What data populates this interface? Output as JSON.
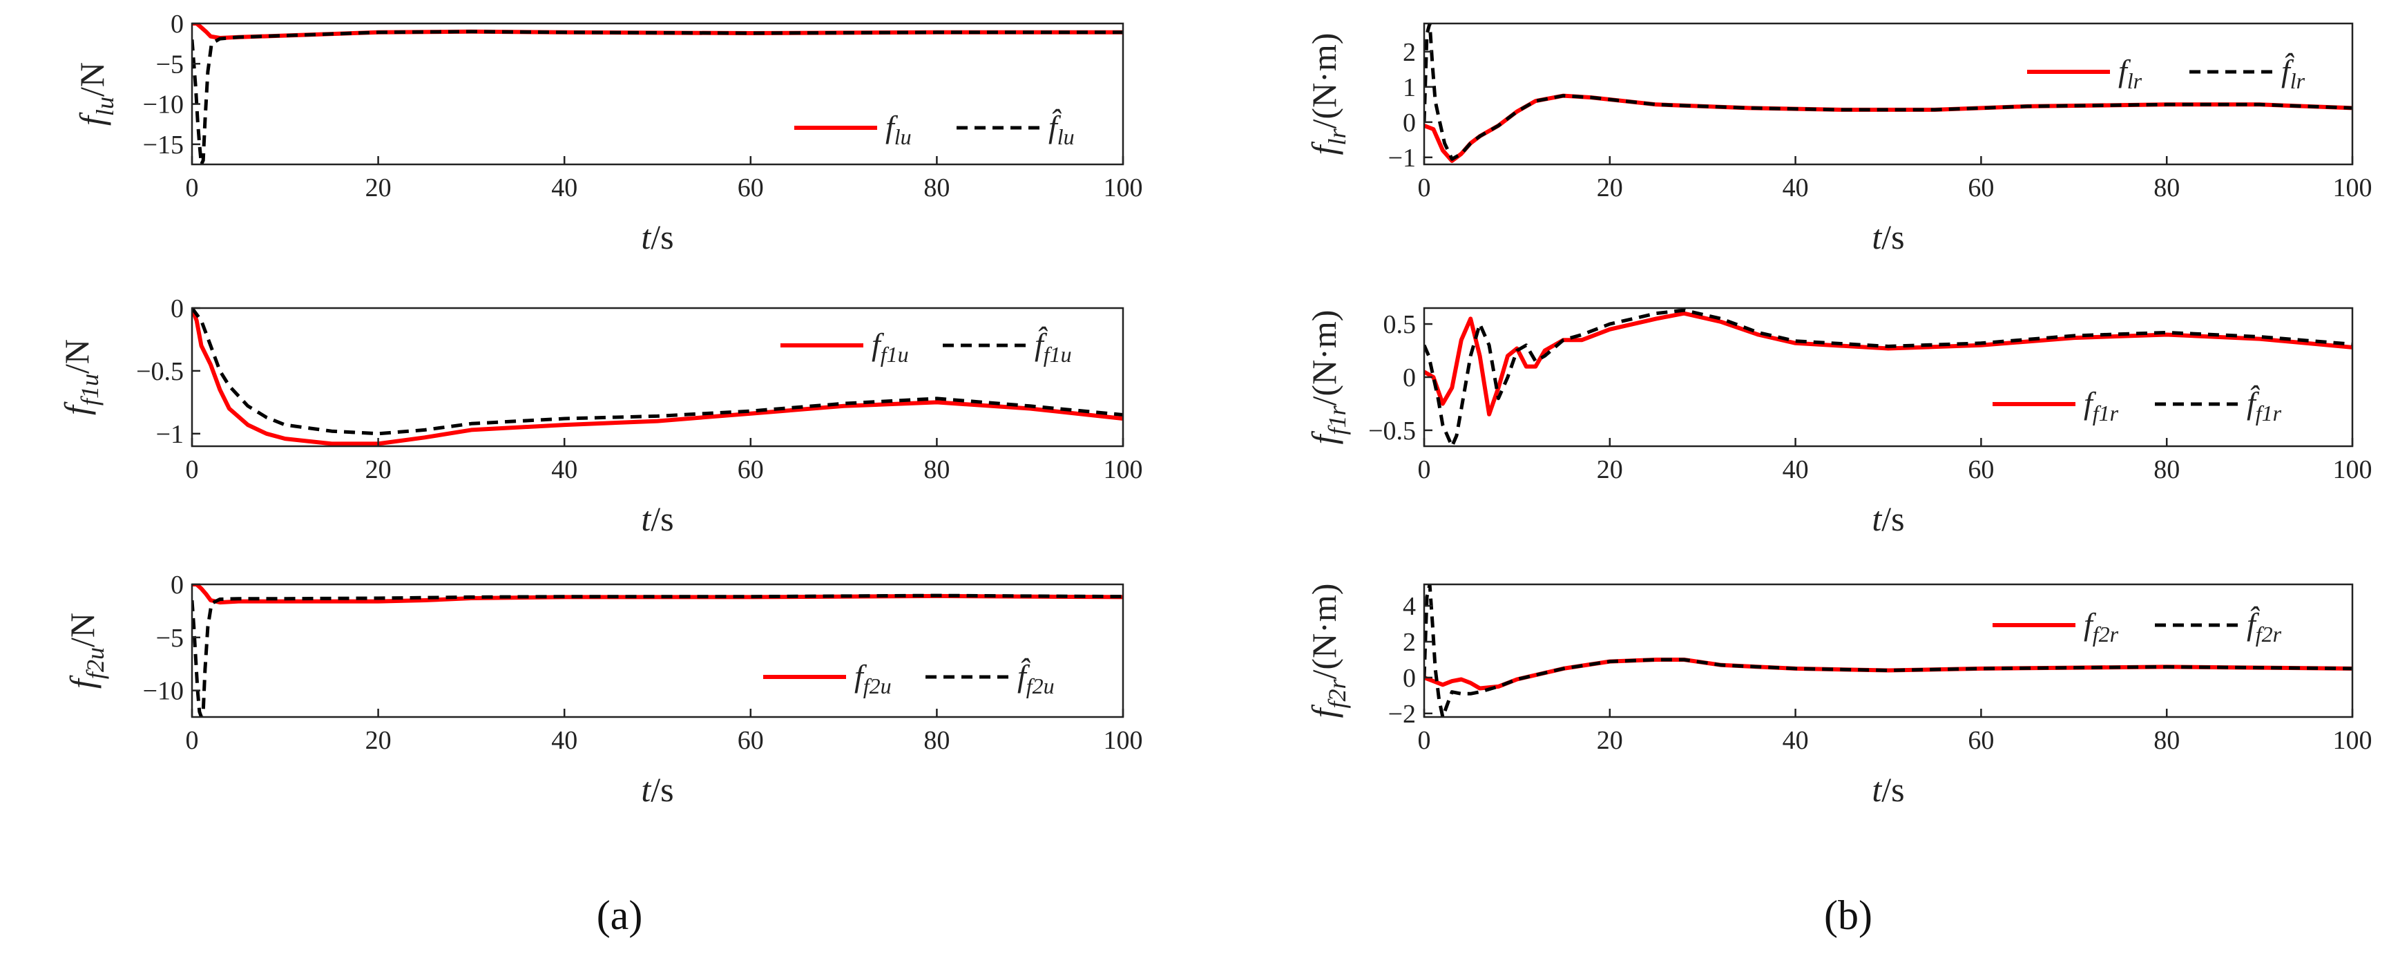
{
  "panel_labels": [
    "(a)",
    "(b)"
  ],
  "chart_data": [
    {
      "id": "flu",
      "type": "line",
      "title": "",
      "xlabel": "t/s",
      "ylabel": "f_lu/N",
      "xlim": [
        0,
        100
      ],
      "ylim": [
        -17.5,
        0
      ],
      "xticks": [
        0,
        20,
        40,
        60,
        80,
        100
      ],
      "yticks": [
        -15,
        -10,
        -5,
        0
      ],
      "legend": [
        "f_lu",
        "f̂_lu"
      ],
      "legend_position": "right",
      "series": [
        {
          "name": "f_lu",
          "style": "solid",
          "color": "#ff0000",
          "x": [
            0,
            0.5,
            1,
            1.5,
            2,
            3,
            5,
            10,
            20,
            30,
            40,
            60,
            80,
            100
          ],
          "y": [
            0,
            0,
            -0.5,
            -1,
            -1.6,
            -1.8,
            -1.7,
            -1.5,
            -1.1,
            -1.0,
            -1.1,
            -1.2,
            -1.1,
            -1.1
          ]
        },
        {
          "name": "f̂_lu",
          "style": "dashed",
          "color": "#000000",
          "x": [
            0,
            0.2,
            0.4,
            0.6,
            0.8,
            1.0,
            1.2,
            1.4,
            1.7,
            2.1,
            3,
            5,
            10,
            20,
            30,
            40,
            60,
            80,
            100
          ],
          "y": [
            -2,
            -5,
            -8,
            -12,
            -15,
            -17.5,
            -17,
            -12,
            -6,
            -2.5,
            -1.9,
            -1.7,
            -1.5,
            -1.1,
            -1.0,
            -1.1,
            -1.2,
            -1.1,
            -1.1
          ]
        }
      ]
    },
    {
      "id": "flr",
      "type": "line",
      "title": "",
      "xlabel": "t/s",
      "ylabel": "f_lr/(N·m)",
      "xlim": [
        0,
        100
      ],
      "ylim": [
        -1.2,
        2.8
      ],
      "xticks": [
        0,
        20,
        40,
        60,
        80,
        100
      ],
      "yticks": [
        -1,
        0,
        1,
        2
      ],
      "legend": [
        "f_lr",
        "f̂_lr"
      ],
      "legend_position": "top-right",
      "series": [
        {
          "name": "f_lr",
          "style": "solid",
          "color": "#ff0000",
          "x": [
            0,
            1,
            2,
            3,
            4,
            5,
            6,
            8,
            10,
            12,
            15,
            18,
            25,
            35,
            45,
            55,
            65,
            80,
            90,
            100
          ],
          "y": [
            -0.1,
            -0.2,
            -0.8,
            -1.1,
            -0.9,
            -0.6,
            -0.4,
            -0.1,
            0.3,
            0.6,
            0.75,
            0.7,
            0.5,
            0.4,
            0.35,
            0.35,
            0.45,
            0.5,
            0.5,
            0.4
          ]
        },
        {
          "name": "f̂_lr",
          "style": "dashed",
          "color": "#000000",
          "x": [
            0,
            0.3,
            0.6,
            0.9,
            1.2,
            1.6,
            2.2,
            3,
            4,
            5,
            6,
            8,
            10,
            12,
            15,
            18,
            25,
            35,
            45,
            55,
            65,
            80,
            90,
            100
          ],
          "y": [
            0,
            2.5,
            2.8,
            1.6,
            0.6,
            0.1,
            -0.6,
            -1.05,
            -0.9,
            -0.6,
            -0.4,
            -0.1,
            0.3,
            0.6,
            0.75,
            0.7,
            0.5,
            0.4,
            0.35,
            0.35,
            0.45,
            0.5,
            0.5,
            0.4
          ]
        }
      ]
    },
    {
      "id": "ff1u",
      "type": "line",
      "title": "",
      "xlabel": "t/s",
      "ylabel": "f_f1u/N",
      "xlim": [
        0,
        100
      ],
      "ylim": [
        -1.1,
        0
      ],
      "xticks": [
        0,
        20,
        40,
        60,
        80,
        100
      ],
      "yticks": [
        -1,
        -0.5,
        0
      ],
      "legend": [
        "f_f1u",
        "f̂_f1u"
      ],
      "legend_position": "top-right",
      "series": [
        {
          "name": "f_f1u",
          "style": "solid",
          "color": "#ff0000",
          "x": [
            0,
            0.5,
            1,
            2,
            3,
            4,
            6,
            8,
            10,
            15,
            20,
            25,
            30,
            40,
            50,
            60,
            70,
            80,
            90,
            100
          ],
          "y": [
            0,
            -0.1,
            -0.3,
            -0.45,
            -0.65,
            -0.8,
            -0.93,
            -1.0,
            -1.04,
            -1.08,
            -1.08,
            -1.03,
            -0.97,
            -0.93,
            -0.9,
            -0.84,
            -0.78,
            -0.75,
            -0.8,
            -0.88
          ]
        },
        {
          "name": "f̂_f1u",
          "style": "dashed",
          "color": "#000000",
          "x": [
            0,
            1,
            2,
            3,
            4,
            6,
            8,
            10,
            15,
            20,
            25,
            30,
            40,
            50,
            60,
            70,
            80,
            90,
            100
          ],
          "y": [
            0,
            -0.1,
            -0.3,
            -0.5,
            -0.62,
            -0.78,
            -0.87,
            -0.93,
            -0.98,
            -1.0,
            -0.97,
            -0.92,
            -0.88,
            -0.86,
            -0.82,
            -0.76,
            -0.72,
            -0.78,
            -0.85
          ]
        }
      ]
    },
    {
      "id": "ff1r",
      "type": "line",
      "title": "",
      "xlabel": "t/s",
      "ylabel": "f_f1r/(N·m)",
      "xlim": [
        0,
        100
      ],
      "ylim": [
        -0.65,
        0.65
      ],
      "xticks": [
        0,
        20,
        40,
        60,
        80,
        100
      ],
      "yticks": [
        -0.5,
        0,
        0.5
      ],
      "legend": [
        "f_f1r",
        "f̂_f1r"
      ],
      "legend_position": "bottom-right",
      "series": [
        {
          "name": "f_f1r",
          "style": "solid",
          "color": "#ff0000",
          "x": [
            0,
            1,
            2,
            3,
            4,
            5,
            6,
            7,
            8,
            9,
            10,
            11,
            12,
            13,
            15,
            17,
            20,
            25,
            28,
            32,
            36,
            40,
            50,
            60,
            70,
            80,
            90,
            100
          ],
          "y": [
            0.05,
            0,
            -0.25,
            -0.1,
            0.35,
            0.55,
            0.2,
            -0.35,
            -0.1,
            0.2,
            0.27,
            0.1,
            0.1,
            0.25,
            0.35,
            0.35,
            0.45,
            0.55,
            0.6,
            0.52,
            0.4,
            0.32,
            0.27,
            0.3,
            0.37,
            0.4,
            0.36,
            0.28
          ]
        },
        {
          "name": "f̂_f1r",
          "style": "dashed",
          "color": "#000000",
          "x": [
            0,
            0.5,
            1,
            1.5,
            2,
            3,
            3.5,
            4,
            5,
            6,
            7,
            8,
            9,
            10,
            11,
            12,
            13,
            15,
            17,
            20,
            25,
            28,
            32,
            36,
            40,
            50,
            60,
            70,
            80,
            90,
            100
          ],
          "y": [
            0.3,
            0.2,
            0,
            -0.2,
            -0.45,
            -0.65,
            -0.55,
            -0.3,
            0.2,
            0.5,
            0.3,
            -0.2,
            0.0,
            0.25,
            0.3,
            0.15,
            0.2,
            0.35,
            0.4,
            0.5,
            0.6,
            0.63,
            0.55,
            0.42,
            0.34,
            0.29,
            0.32,
            0.39,
            0.42,
            0.38,
            0.31
          ]
        }
      ]
    },
    {
      "id": "ff2u",
      "type": "line",
      "title": "",
      "xlabel": "t/s",
      "ylabel": "f_f2u/N",
      "xlim": [
        0,
        100
      ],
      "ylim": [
        -12.5,
        0
      ],
      "xticks": [
        0,
        20,
        40,
        60,
        80,
        100
      ],
      "yticks": [
        -10,
        -5,
        0
      ],
      "legend": [
        "f_f2u",
        "f̂_f2u"
      ],
      "legend_position": "right",
      "series": [
        {
          "name": "f_f2u",
          "style": "solid",
          "color": "#ff0000",
          "x": [
            0,
            0.5,
            1,
            1.5,
            2,
            3,
            5,
            10,
            20,
            25,
            30,
            40,
            60,
            80,
            100
          ],
          "y": [
            0,
            0,
            -0.4,
            -0.9,
            -1.5,
            -1.7,
            -1.6,
            -1.6,
            -1.6,
            -1.5,
            -1.3,
            -1.2,
            -1.2,
            -1.1,
            -1.2
          ]
        },
        {
          "name": "f̂_f2u",
          "style": "dashed",
          "color": "#000000",
          "x": [
            0,
            0.2,
            0.4,
            0.6,
            0.8,
            1.0,
            1.2,
            1.4,
            1.7,
            2.1,
            3,
            5,
            10,
            20,
            25,
            30,
            40,
            60,
            80,
            100
          ],
          "y": [
            -1.5,
            -4,
            -7,
            -10,
            -12,
            -12.5,
            -12,
            -8,
            -4,
            -1.8,
            -1.4,
            -1.35,
            -1.35,
            -1.3,
            -1.25,
            -1.2,
            -1.15,
            -1.15,
            -1.05,
            -1.15
          ]
        }
      ]
    },
    {
      "id": "ff2r",
      "type": "line",
      "title": "",
      "xlabel": "t/s",
      "ylabel": "f_f2r/(N·m)",
      "xlim": [
        0,
        100
      ],
      "ylim": [
        -2.2,
        5.2
      ],
      "xticks": [
        0,
        20,
        40,
        60,
        80,
        100
      ],
      "yticks": [
        -2,
        0,
        2,
        4
      ],
      "legend": [
        "f_f2r",
        "f̂_f2r"
      ],
      "legend_position": "top-right",
      "series": [
        {
          "name": "f_f2r",
          "style": "solid",
          "color": "#ff0000",
          "x": [
            0,
            1,
            2,
            3,
            4,
            5,
            6,
            8,
            10,
            15,
            20,
            25,
            28,
            32,
            40,
            50,
            60,
            70,
            80,
            90,
            100
          ],
          "y": [
            0,
            -0.2,
            -0.4,
            -0.2,
            -0.1,
            -0.3,
            -0.6,
            -0.5,
            -0.1,
            0.5,
            0.9,
            1.0,
            1.0,
            0.7,
            0.5,
            0.4,
            0.5,
            0.55,
            0.6,
            0.55,
            0.5
          ]
        },
        {
          "name": "f̂_f2r",
          "style": "dashed",
          "color": "#000000",
          "x": [
            0,
            0.3,
            0.6,
            0.9,
            1.2,
            1.6,
            2,
            2.5,
            3,
            4,
            5,
            6,
            8,
            10,
            15,
            20,
            25,
            28,
            32,
            40,
            50,
            60,
            70,
            80,
            90,
            100
          ],
          "y": [
            0,
            4.5,
            5.2,
            3,
            0.5,
            -1.2,
            -2.2,
            -1.5,
            -0.8,
            -0.9,
            -0.9,
            -0.8,
            -0.5,
            -0.1,
            0.5,
            0.9,
            1.0,
            1.0,
            0.7,
            0.5,
            0.4,
            0.5,
            0.55,
            0.6,
            0.55,
            0.5
          ]
        }
      ]
    }
  ]
}
